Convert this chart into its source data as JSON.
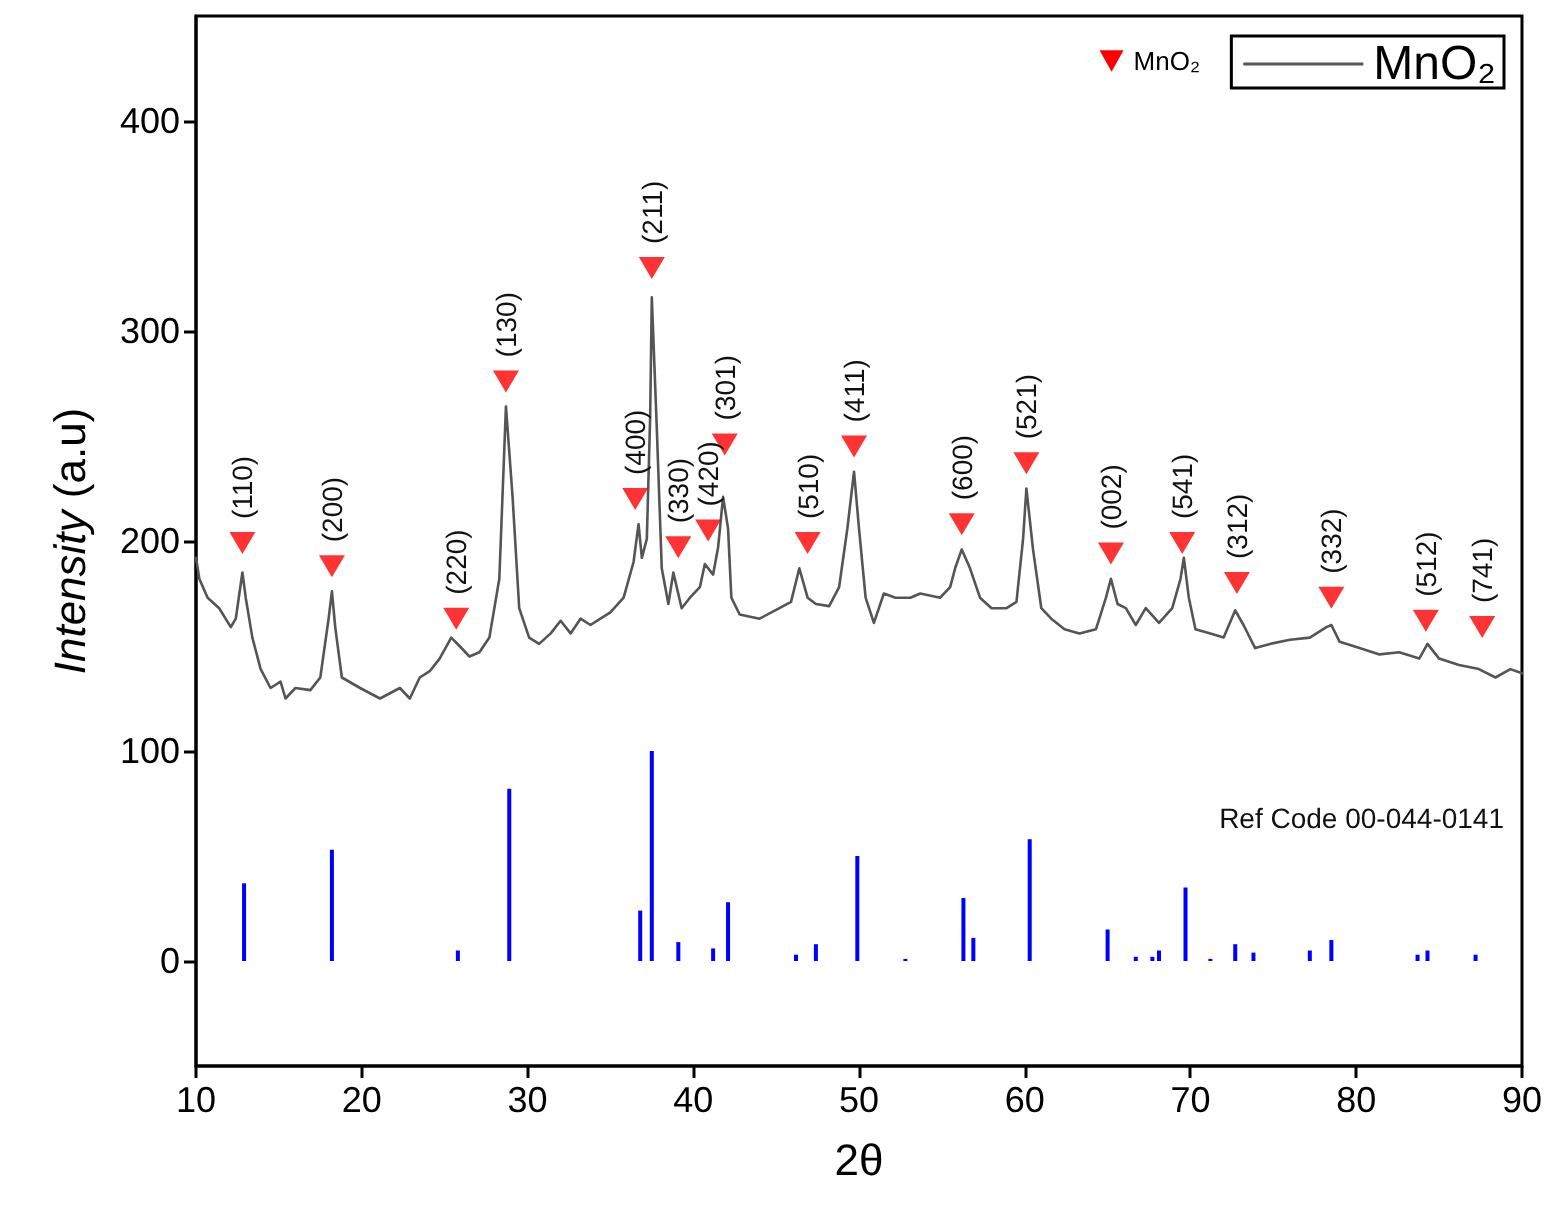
{
  "chart_data": {
    "type": "line",
    "xlabel": "2θ",
    "ylabel": "Intensity (a.u)",
    "xlim": [
      10,
      90
    ],
    "xticks": [
      10,
      20,
      30,
      40,
      50,
      60,
      70,
      80,
      90
    ],
    "ylim": [
      -50,
      450
    ],
    "yticks": [
      0,
      100,
      200,
      300,
      400
    ],
    "grid": false,
    "legend": "top right",
    "annotations": [
      "Ref Code 00-044-0141",
      {
        "text": "(110)",
        "x": 12.8,
        "y": 199
      },
      {
        "text": "(200)",
        "x": 18.2,
        "y": 188
      },
      {
        "text": "(220)",
        "x": 25.7,
        "y": 163
      },
      {
        "text": "(130)",
        "x": 28.7,
        "y": 276
      },
      {
        "text": "(400)",
        "x": 36.5,
        "y": 220
      },
      {
        "text": "(211)",
        "x": 37.5,
        "y": 330
      },
      {
        "text": "(330)",
        "x": 39.1,
        "y": 197
      },
      {
        "text": "(420)",
        "x": 40.9,
        "y": 205
      },
      {
        "text": "(301)",
        "x": 41.9,
        "y": 246
      },
      {
        "text": "(510)",
        "x": 46.9,
        "y": 199
      },
      {
        "text": "(411)",
        "x": 49.7,
        "y": 245
      },
      {
        "text": "(600)",
        "x": 56.2,
        "y": 208
      },
      {
        "text": "(521)",
        "x": 60.1,
        "y": 237
      },
      {
        "text": "(002)",
        "x": 65.2,
        "y": 194
      },
      {
        "text": "(541)",
        "x": 69.5,
        "y": 199
      },
      {
        "text": "(312)",
        "x": 72.8,
        "y": 180
      },
      {
        "text": "(332)",
        "x": 78.5,
        "y": 173
      },
      {
        "text": "(512)",
        "x": 84.2,
        "y": 162
      },
      {
        "text": "(741)",
        "x": 87.6,
        "y": 159
      }
    ],
    "series": [
      {
        "name": "MnO₂",
        "color": "#555555",
        "marker": "none",
        "line_style": "solid",
        "x": [
          10,
          10.2,
          10.7,
          11.4,
          12.1,
          12.4,
          12.8,
          13.0,
          13.4,
          13.9,
          14.5,
          15.1,
          15.4,
          16.0,
          16.9,
          17.5,
          18.0,
          18.2,
          18.4,
          18.8,
          19.9,
          21.1,
          22.3,
          22.9,
          23.5,
          24.1,
          24.7,
          25.4,
          25.9,
          26.5,
          27.1,
          27.7,
          28.3,
          28.7,
          29.1,
          29.5,
          30.1,
          30.7,
          31.4,
          32.0,
          32.6,
          33.2,
          33.8,
          34.4,
          35.0,
          35.8,
          36.4,
          36.7,
          36.9,
          37.2,
          37.4,
          37.5,
          37.8,
          38.1,
          38.5,
          38.8,
          39.3,
          39.8,
          40.4,
          40.7,
          41.2,
          41.5,
          41.8,
          42.1,
          42.3,
          42.8,
          44.0,
          45.2,
          45.9,
          46.4,
          46.9,
          47.4,
          48.2,
          48.8,
          49.3,
          49.7,
          50.0,
          50.4,
          50.9,
          51.5,
          52.2,
          53.1,
          53.7,
          54.9,
          55.5,
          55.8,
          56.2,
          56.7,
          57.3,
          58.0,
          58.9,
          59.5,
          59.9,
          60.1,
          60.5,
          61.0,
          61.6,
          62.4,
          63.3,
          64.3,
          64.9,
          65.2,
          65.6,
          66.1,
          66.7,
          67.3,
          68.1,
          68.9,
          69.4,
          69.6,
          69.9,
          70.3,
          71.2,
          72.0,
          72.7,
          73.2,
          73.9,
          74.8,
          76.0,
          77.2,
          78.2,
          78.5,
          79.0,
          80.2,
          81.4,
          82.6,
          83.8,
          84.3,
          85.0,
          86.2,
          87.4,
          88.4,
          89.3,
          90
        ],
        "values": [
          192,
          182,
          173,
          168,
          159,
          163,
          185,
          173,
          154,
          139,
          130,
          133,
          125,
          130,
          129,
          135,
          163,
          176,
          159,
          135,
          130,
          125,
          130,
          125,
          135,
          138,
          144,
          154,
          150,
          145,
          147,
          154,
          182,
          264,
          221,
          168,
          154,
          151,
          156,
          162,
          156,
          163,
          160,
          163,
          166,
          173,
          190,
          208,
          192,
          201,
          259,
          316,
          254,
          187,
          170,
          185,
          168,
          173,
          178,
          189,
          184,
          197,
          221,
          206,
          173,
          165,
          163,
          168,
          171,
          187,
          173,
          170,
          169,
          178,
          206,
          233,
          206,
          173,
          161,
          175,
          173,
          173,
          175,
          173,
          178,
          187,
          196,
          187,
          173,
          168,
          168,
          171,
          201,
          225,
          196,
          168,
          163,
          158,
          156,
          158,
          173,
          182,
          170,
          168,
          160,
          168,
          161,
          168,
          182,
          192,
          173,
          158,
          156,
          154,
          167,
          160,
          149,
          151,
          153,
          154,
          159,
          160,
          152,
          149,
          146,
          147,
          144,
          151,
          144,
          141,
          139,
          135,
          139,
          137
        ]
      },
      {
        "name": "MnO₂",
        "type": "scatter",
        "color": "#ff0000",
        "marker": "triangle",
        "x": [
          12.8,
          18.2,
          25.7,
          28.7,
          36.5,
          37.5,
          39.1,
          40.9,
          41.9,
          46.9,
          49.7,
          56.2,
          60.1,
          65.2,
          69.5,
          72.8,
          78.5,
          84.2,
          87.6
        ],
        "values": [
          199,
          188,
          163,
          276,
          220,
          330,
          197,
          205,
          246,
          199,
          245,
          208,
          237,
          194,
          199,
          180,
          173,
          162,
          159
        ]
      },
      {
        "type": "bar",
        "color": "#0000ff",
        "x": [
          12.9,
          18.2,
          25.8,
          28.9,
          36.8,
          37.5,
          39.1,
          41.2,
          42.1,
          46.2,
          47.4,
          49.9,
          52.8,
          56.3,
          56.9,
          60.3,
          65.0,
          66.7,
          67.7,
          68.1,
          69.7,
          71.2,
          72.7,
          73.8,
          77.2,
          78.5,
          83.7,
          84.3,
          87.2
        ],
        "values": [
          37,
          53,
          5,
          82,
          24,
          100,
          9,
          6,
          28,
          3,
          8,
          50,
          1,
          30,
          11,
          58,
          15,
          2,
          2,
          5,
          35,
          1,
          8,
          4,
          5,
          10,
          3,
          5,
          3
        ]
      }
    ]
  }
}
